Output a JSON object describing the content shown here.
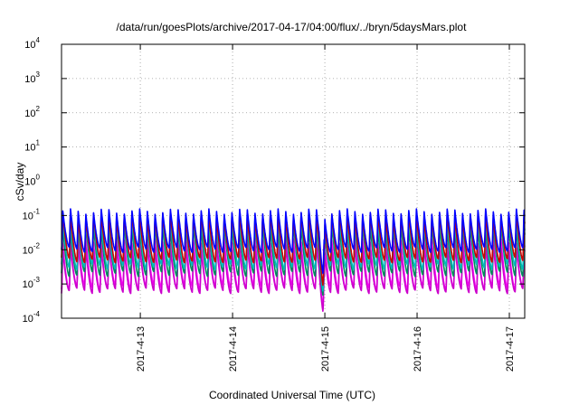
{
  "chart_data": {
    "type": "line",
    "title": "/data/run/goesPlots/archive/2017-04-17/04:00/flux/../bryn/5daysMars.plot",
    "xlabel": "Coordinated Universal Time (UTC)",
    "ylabel": "cSv/day",
    "yscale": "log",
    "ylim_exponent": [
      -4,
      4
    ],
    "y_ticks": [
      {
        "base": "10",
        "exp": "-4",
        "value": -4
      },
      {
        "base": "10",
        "exp": "-3",
        "value": -3
      },
      {
        "base": "10",
        "exp": "-2",
        "value": -2
      },
      {
        "base": "10",
        "exp": "-1",
        "value": -1
      },
      {
        "base": "10",
        "exp": "0",
        "value": 0
      },
      {
        "base": "10",
        "exp": "1",
        "value": 1
      },
      {
        "base": "10",
        "exp": "2",
        "value": 2
      },
      {
        "base": "10",
        "exp": "3",
        "value": 3
      },
      {
        "base": "10",
        "exp": "4",
        "value": 4
      }
    ],
    "x_range_days": [
      "2017-04-12T03:30",
      "2017-04-17T04:00"
    ],
    "x_ticks": [
      {
        "label": "2017-4-13",
        "date": "2017-04-13"
      },
      {
        "label": "2017-4-14",
        "date": "2017-04-14"
      },
      {
        "label": "2017-4-15",
        "date": "2017-04-15"
      },
      {
        "label": "2017-4-16",
        "date": "2017-04-16"
      },
      {
        "label": "2017-4-17",
        "date": "2017-04-17"
      }
    ],
    "grid": true,
    "legend": "none",
    "series_pattern": {
      "sawtooth_period_hours": 2,
      "dropout_start": "2017-04-14T22:30",
      "dropout_end": "2017-04-15T00:00"
    },
    "series": [
      {
        "color": "#0000ff",
        "peak_exp": -0.85,
        "trough_exp": -2.0
      },
      {
        "color": "#cc0000",
        "peak_exp": -0.95,
        "trough_exp": -2.3
      },
      {
        "color": "#00bbbb",
        "peak_exp": -1.1,
        "trough_exp": -2.5
      },
      {
        "color": "#008b5a",
        "peak_exp": -1.25,
        "trough_exp": -2.7
      },
      {
        "color": "#ff00ff",
        "peak_exp": -1.7,
        "trough_exp": -3.1
      },
      {
        "color": "#cc00cc",
        "peak_exp": -1.9,
        "trough_exp": -3.2
      }
    ]
  }
}
